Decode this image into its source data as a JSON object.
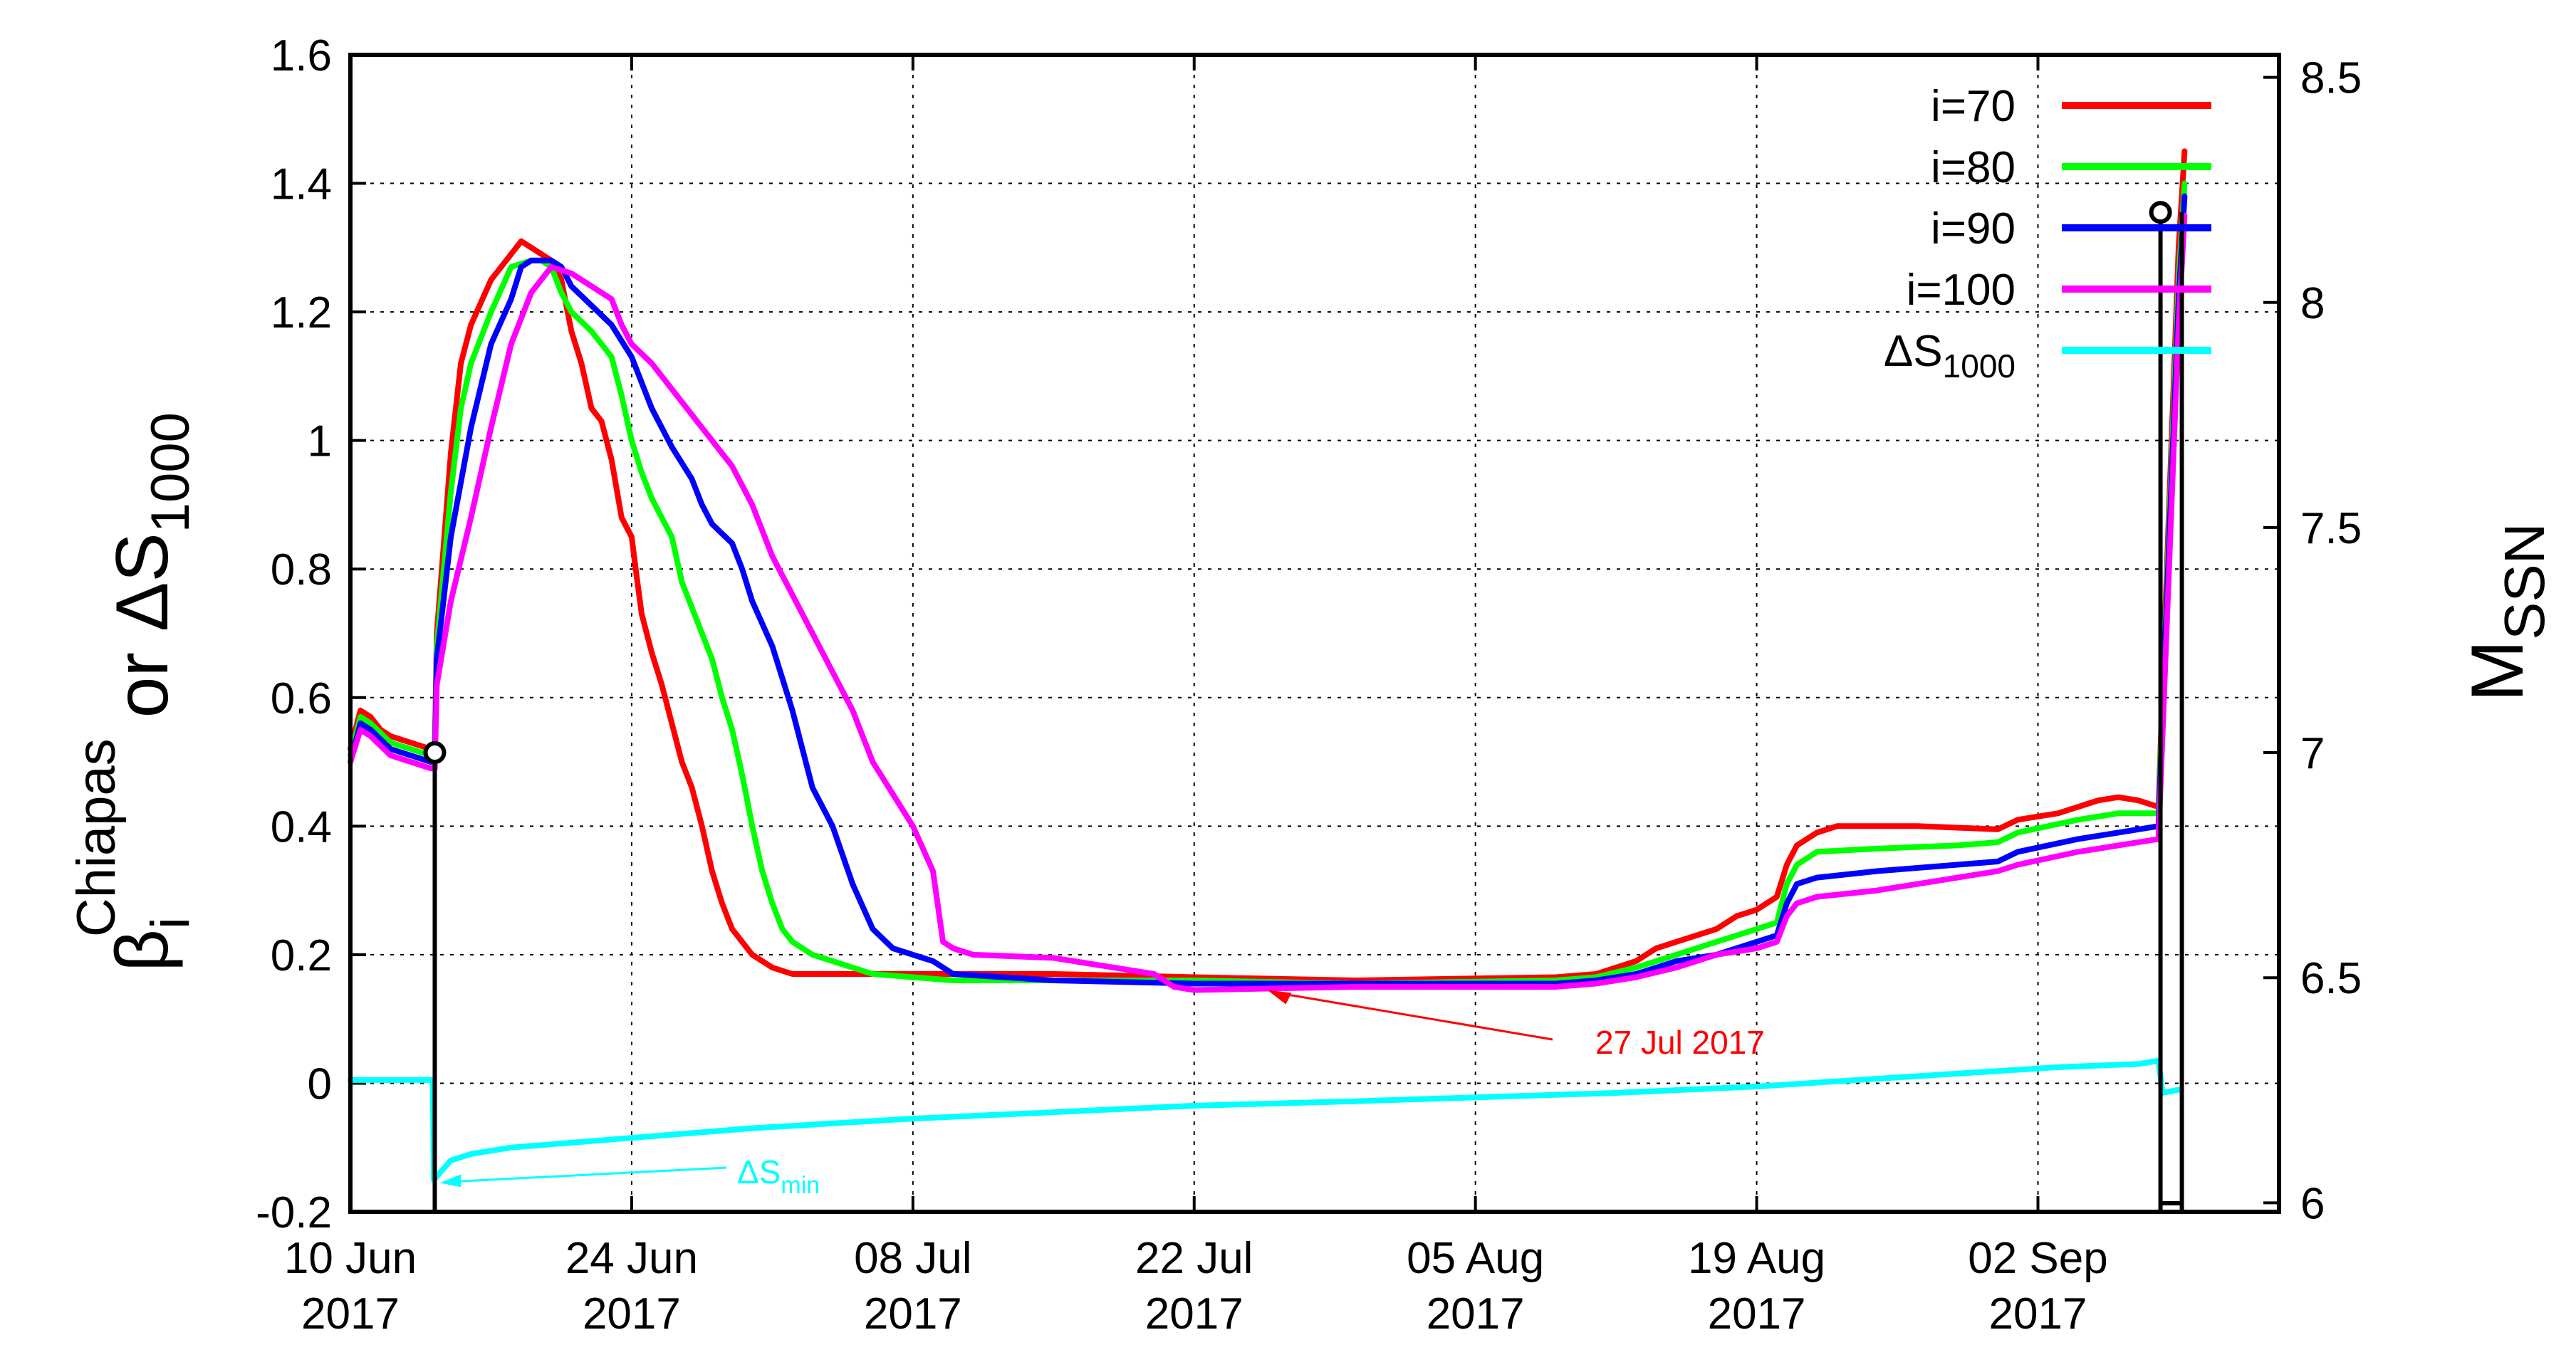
{
  "chart_data": {
    "type": "line",
    "xaxis": {
      "day_range": [
        0,
        96
      ],
      "ticks": [
        {
          "day": 0,
          "line1": "10 Jun",
          "line2": "2017"
        },
        {
          "day": 14,
          "line1": "24 Jun",
          "line2": "2017"
        },
        {
          "day": 28,
          "line1": "08 Jul",
          "line2": "2017"
        },
        {
          "day": 42,
          "line1": "22 Jul",
          "line2": "2017"
        },
        {
          "day": 56,
          "line1": "05 Aug",
          "line2": "2017"
        },
        {
          "day": 70,
          "line1": "19 Aug",
          "line2": "2017"
        },
        {
          "day": 84,
          "line1": "02 Sep",
          "line2": "2017"
        }
      ]
    },
    "yaxis_left": {
      "label_beta": "β",
      "label_sub": "i",
      "label_sup": "Chiapas",
      "label_or": " or ΔS",
      "label_or_sub": "1000",
      "range": [
        -0.2,
        1.6
      ],
      "ticks": [
        "-0.2",
        "0",
        "0.2",
        "0.4",
        "0.6",
        "0.8",
        "1",
        "1.2",
        "1.4",
        "1.6"
      ]
    },
    "yaxis_right": {
      "label_main": "M",
      "label_sub": "SSN",
      "range": [
        5.98,
        8.55
      ],
      "ticks": [
        "6",
        "6.5",
        "7",
        "7.5",
        "8",
        "8.5"
      ]
    },
    "series": [
      {
        "name": "i=70",
        "color": "#ff0000",
        "points": [
          [
            0,
            0.52
          ],
          [
            0.5,
            0.58
          ],
          [
            1,
            0.57
          ],
          [
            1.5,
            0.55
          ],
          [
            2,
            0.54
          ],
          [
            3,
            0.53
          ],
          [
            4,
            0.52
          ],
          [
            4.2,
            0.52
          ],
          [
            4.3,
            0.7
          ],
          [
            4.6,
            0.82
          ],
          [
            5,
            0.98
          ],
          [
            5.5,
            1.12
          ],
          [
            6,
            1.18
          ],
          [
            7,
            1.25
          ],
          [
            8,
            1.29
          ],
          [
            8.5,
            1.31
          ],
          [
            9,
            1.3
          ],
          [
            10,
            1.28
          ],
          [
            10.5,
            1.25
          ],
          [
            11,
            1.17
          ],
          [
            11.5,
            1.12
          ],
          [
            12,
            1.05
          ],
          [
            12.5,
            1.03
          ],
          [
            13,
            0.97
          ],
          [
            13.5,
            0.88
          ],
          [
            14,
            0.85
          ],
          [
            14.2,
            0.8
          ],
          [
            14.5,
            0.73
          ],
          [
            15,
            0.67
          ],
          [
            15.5,
            0.62
          ],
          [
            16,
            0.56
          ],
          [
            16.5,
            0.5
          ],
          [
            17,
            0.46
          ],
          [
            17.5,
            0.4
          ],
          [
            18,
            0.33
          ],
          [
            18.5,
            0.28
          ],
          [
            19,
            0.24
          ],
          [
            20,
            0.2
          ],
          [
            21,
            0.18
          ],
          [
            22,
            0.17
          ],
          [
            24,
            0.17
          ],
          [
            28,
            0.17
          ],
          [
            35,
            0.17
          ],
          [
            42,
            0.165
          ],
          [
            50,
            0.16
          ],
          [
            60,
            0.165
          ],
          [
            62,
            0.17
          ],
          [
            63,
            0.18
          ],
          [
            64,
            0.19
          ],
          [
            65,
            0.21
          ],
          [
            66,
            0.22
          ],
          [
            68,
            0.24
          ],
          [
            69,
            0.26
          ],
          [
            70,
            0.27
          ],
          [
            71,
            0.29
          ],
          [
            71.5,
            0.34
          ],
          [
            72,
            0.37
          ],
          [
            73,
            0.39
          ],
          [
            74,
            0.4
          ],
          [
            78,
            0.4
          ],
          [
            82,
            0.395
          ],
          [
            83,
            0.41
          ],
          [
            85,
            0.42
          ],
          [
            87,
            0.44
          ],
          [
            88,
            0.445
          ],
          [
            89,
            0.44
          ],
          [
            90,
            0.43
          ],
          [
            90.3,
            0.7
          ],
          [
            91,
            1.3
          ],
          [
            91.3,
            1.45
          ]
        ]
      },
      {
        "name": "i=80",
        "color": "#00ff00",
        "points": [
          [
            0,
            0.51
          ],
          [
            0.5,
            0.57
          ],
          [
            1,
            0.56
          ],
          [
            2,
            0.53
          ],
          [
            3,
            0.52
          ],
          [
            4,
            0.51
          ],
          [
            4.2,
            0.51
          ],
          [
            4.3,
            0.68
          ],
          [
            5,
            0.92
          ],
          [
            5.5,
            1.05
          ],
          [
            6,
            1.12
          ],
          [
            7,
            1.2
          ],
          [
            8,
            1.27
          ],
          [
            9,
            1.28
          ],
          [
            9.5,
            1.28
          ],
          [
            10,
            1.27
          ],
          [
            10.5,
            1.23
          ],
          [
            11,
            1.2
          ],
          [
            12,
            1.17
          ],
          [
            13,
            1.13
          ],
          [
            13.5,
            1.07
          ],
          [
            14,
            1.0
          ],
          [
            14.5,
            0.95
          ],
          [
            15,
            0.91
          ],
          [
            16,
            0.85
          ],
          [
            16.5,
            0.78
          ],
          [
            17,
            0.74
          ],
          [
            17.5,
            0.7
          ],
          [
            18,
            0.66
          ],
          [
            18.5,
            0.6
          ],
          [
            19,
            0.55
          ],
          [
            19.5,
            0.48
          ],
          [
            20,
            0.4
          ],
          [
            20.5,
            0.33
          ],
          [
            21,
            0.28
          ],
          [
            21.5,
            0.24
          ],
          [
            22,
            0.22
          ],
          [
            23,
            0.2
          ],
          [
            24,
            0.19
          ],
          [
            26,
            0.17
          ],
          [
            28,
            0.165
          ],
          [
            30,
            0.16
          ],
          [
            35,
            0.16
          ],
          [
            42,
            0.16
          ],
          [
            50,
            0.155
          ],
          [
            60,
            0.16
          ],
          [
            62,
            0.165
          ],
          [
            64,
            0.18
          ],
          [
            66,
            0.2
          ],
          [
            68,
            0.22
          ],
          [
            70,
            0.24
          ],
          [
            71,
            0.25
          ],
          [
            71.5,
            0.31
          ],
          [
            72,
            0.34
          ],
          [
            73,
            0.36
          ],
          [
            76,
            0.365
          ],
          [
            80,
            0.37
          ],
          [
            82,
            0.375
          ],
          [
            83,
            0.39
          ],
          [
            86,
            0.41
          ],
          [
            88,
            0.42
          ],
          [
            90,
            0.42
          ],
          [
            90.3,
            0.68
          ],
          [
            91,
            1.25
          ],
          [
            91.3,
            1.4
          ]
        ]
      },
      {
        "name": "i=90",
        "color": "#0000ff",
        "points": [
          [
            0,
            0.5
          ],
          [
            0.5,
            0.56
          ],
          [
            1,
            0.55
          ],
          [
            2,
            0.52
          ],
          [
            3,
            0.51
          ],
          [
            4,
            0.5
          ],
          [
            4.2,
            0.5
          ],
          [
            4.3,
            0.66
          ],
          [
            5,
            0.85
          ],
          [
            6,
            1.02
          ],
          [
            7,
            1.15
          ],
          [
            8,
            1.22
          ],
          [
            8.5,
            1.27
          ],
          [
            9,
            1.28
          ],
          [
            10,
            1.28
          ],
          [
            10.5,
            1.27
          ],
          [
            11,
            1.24
          ],
          [
            12,
            1.21
          ],
          [
            13,
            1.18
          ],
          [
            14,
            1.13
          ],
          [
            14.5,
            1.09
          ],
          [
            15,
            1.05
          ],
          [
            16,
            0.99
          ],
          [
            17,
            0.94
          ],
          [
            17.5,
            0.9
          ],
          [
            18,
            0.87
          ],
          [
            19,
            0.84
          ],
          [
            19.5,
            0.8
          ],
          [
            20,
            0.75
          ],
          [
            21,
            0.68
          ],
          [
            22,
            0.58
          ],
          [
            22.5,
            0.52
          ],
          [
            23,
            0.46
          ],
          [
            24,
            0.4
          ],
          [
            25,
            0.31
          ],
          [
            26,
            0.24
          ],
          [
            27,
            0.21
          ],
          [
            28,
            0.2
          ],
          [
            29,
            0.19
          ],
          [
            30,
            0.17
          ],
          [
            35,
            0.16
          ],
          [
            42,
            0.155
          ],
          [
            50,
            0.155
          ],
          [
            60,
            0.155
          ],
          [
            62,
            0.16
          ],
          [
            64,
            0.17
          ],
          [
            66,
            0.19
          ],
          [
            68,
            0.2
          ],
          [
            70,
            0.22
          ],
          [
            71,
            0.23
          ],
          [
            71.5,
            0.28
          ],
          [
            72,
            0.31
          ],
          [
            73,
            0.32
          ],
          [
            76,
            0.33
          ],
          [
            80,
            0.34
          ],
          [
            82,
            0.345
          ],
          [
            83,
            0.36
          ],
          [
            86,
            0.38
          ],
          [
            88,
            0.39
          ],
          [
            90,
            0.4
          ],
          [
            90.3,
            0.66
          ],
          [
            91,
            1.22
          ],
          [
            91.3,
            1.38
          ]
        ]
      },
      {
        "name": "i=100",
        "color": "#ff00ff",
        "points": [
          [
            0,
            0.5
          ],
          [
            0.5,
            0.55
          ],
          [
            1,
            0.54
          ],
          [
            2,
            0.51
          ],
          [
            3,
            0.5
          ],
          [
            4,
            0.49
          ],
          [
            4.2,
            0.49
          ],
          [
            4.3,
            0.62
          ],
          [
            5,
            0.75
          ],
          [
            6,
            0.88
          ],
          [
            7,
            1.02
          ],
          [
            8,
            1.15
          ],
          [
            9,
            1.23
          ],
          [
            10,
            1.27
          ],
          [
            11,
            1.26
          ],
          [
            12,
            1.24
          ],
          [
            13,
            1.22
          ],
          [
            13.5,
            1.18
          ],
          [
            14,
            1.15
          ],
          [
            15,
            1.12
          ],
          [
            16,
            1.08
          ],
          [
            17,
            1.04
          ],
          [
            18,
            1.0
          ],
          [
            19,
            0.96
          ],
          [
            20,
            0.9
          ],
          [
            21,
            0.82
          ],
          [
            22,
            0.76
          ],
          [
            23,
            0.7
          ],
          [
            24,
            0.64
          ],
          [
            25,
            0.58
          ],
          [
            26,
            0.5
          ],
          [
            27,
            0.45
          ],
          [
            28,
            0.4
          ],
          [
            29,
            0.33
          ],
          [
            29.5,
            0.22
          ],
          [
            30,
            0.21
          ],
          [
            31,
            0.2
          ],
          [
            35,
            0.195
          ],
          [
            38,
            0.18
          ],
          [
            40,
            0.17
          ],
          [
            41,
            0.15
          ],
          [
            42,
            0.145
          ],
          [
            50,
            0.15
          ],
          [
            60,
            0.15
          ],
          [
            62,
            0.155
          ],
          [
            64,
            0.165
          ],
          [
            66,
            0.18
          ],
          [
            68,
            0.2
          ],
          [
            70,
            0.21
          ],
          [
            71,
            0.22
          ],
          [
            71.5,
            0.26
          ],
          [
            72,
            0.28
          ],
          [
            73,
            0.29
          ],
          [
            76,
            0.3
          ],
          [
            80,
            0.32
          ],
          [
            82,
            0.33
          ],
          [
            83,
            0.34
          ],
          [
            86,
            0.36
          ],
          [
            88,
            0.37
          ],
          [
            90,
            0.38
          ],
          [
            90.3,
            0.62
          ],
          [
            91,
            1.18
          ],
          [
            91.3,
            1.35
          ]
        ]
      },
      {
        "name": "ΔS",
        "name_sub": "1000",
        "color": "#00ffff",
        "points": [
          [
            0,
            0.005
          ],
          [
            4.1,
            0.005
          ],
          [
            4.15,
            -0.15
          ],
          [
            5,
            -0.12
          ],
          [
            6,
            -0.11
          ],
          [
            8,
            -0.1
          ],
          [
            10,
            -0.095
          ],
          [
            14,
            -0.085
          ],
          [
            20,
            -0.07
          ],
          [
            28,
            -0.055
          ],
          [
            35,
            -0.045
          ],
          [
            42,
            -0.035
          ],
          [
            50,
            -0.028
          ],
          [
            56,
            -0.022
          ],
          [
            63,
            -0.015
          ],
          [
            70,
            -0.005
          ],
          [
            75,
            0.005
          ],
          [
            80,
            0.015
          ],
          [
            85,
            0.025
          ],
          [
            89,
            0.03
          ],
          [
            90,
            0.035
          ],
          [
            90.2,
            -0.015
          ],
          [
            91,
            -0.01
          ]
        ]
      }
    ],
    "markers": [
      {
        "day": 4.2,
        "mag": 7.0,
        "label": ""
      },
      {
        "day": 90.1,
        "mag": 8.2,
        "label": ""
      }
    ],
    "annotations": [
      {
        "text": "27 Jul 2017",
        "color": "#ff0000",
        "day": 45.5,
        "value": 0.145
      },
      {
        "text": "ΔS",
        "sub": "min",
        "color": "#00ffff",
        "day": 4.3,
        "value": -0.155
      }
    ],
    "legend": {
      "placement": "top-right"
    }
  }
}
